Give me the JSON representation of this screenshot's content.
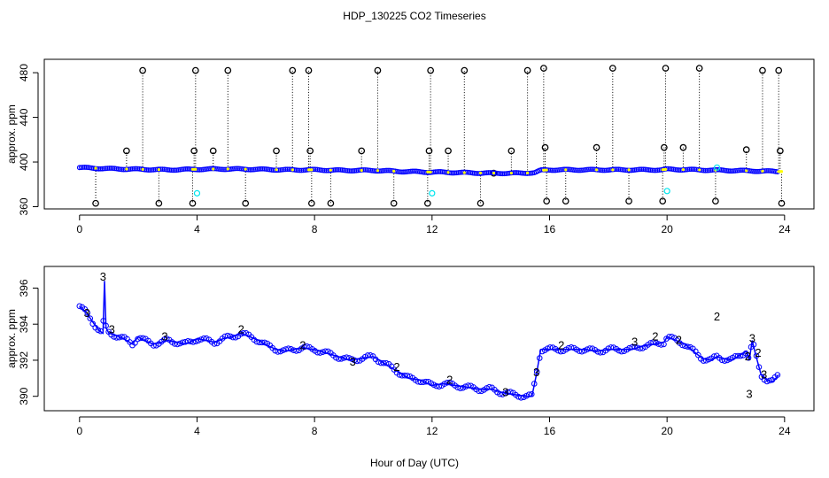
{
  "figure": {
    "title": "HDP_130225  CO2 Timeseries",
    "xlabel": "Hour of Day (UTC)"
  },
  "chart_data": [
    {
      "type": "scatter",
      "ylabel": "approx. ppm",
      "xlim": [
        -1.2,
        25.0
      ],
      "ylim": [
        358,
        492
      ],
      "xticks": [
        0,
        4,
        8,
        12,
        16,
        20,
        24
      ],
      "yticks": [
        360,
        400,
        440,
        480
      ],
      "colors": {
        "main": "#0000ff",
        "dropline": "#000000",
        "circle": "#000000",
        "cyan": "#00e5ee",
        "yellow": "#ffff00"
      },
      "baseline": [
        [
          0,
          395
        ],
        [
          0.5,
          394.5
        ],
        [
          1,
          394
        ],
        [
          2,
          393.5
        ],
        [
          3,
          393
        ],
        [
          4,
          393.5
        ],
        [
          5,
          393.8
        ],
        [
          6,
          393.5
        ],
        [
          7,
          393
        ],
        [
          8,
          393
        ],
        [
          9,
          392.5
        ],
        [
          10,
          392.5
        ],
        [
          11,
          391.5
        ],
        [
          12,
          391
        ],
        [
          13,
          390.5
        ],
        [
          14,
          390
        ],
        [
          15,
          390
        ],
        [
          15.5,
          390.5
        ],
        [
          15.7,
          392.5
        ],
        [
          16,
          393
        ],
        [
          17,
          393
        ],
        [
          18,
          393
        ],
        [
          19,
          393
        ],
        [
          19.8,
          393
        ],
        [
          20,
          393.5
        ],
        [
          21,
          393
        ],
        [
          22,
          392.5
        ],
        [
          23,
          392
        ],
        [
          23.8,
          391.5
        ]
      ],
      "spikes": [
        {
          "x": 0.55,
          "y": 363
        },
        {
          "x": 1.6,
          "y": 410
        },
        {
          "x": 2.15,
          "y": 482
        },
        {
          "x": 2.7,
          "y": 363
        },
        {
          "x": 3.85,
          "y": 363
        },
        {
          "x": 3.9,
          "y": 410
        },
        {
          "x": 3.95,
          "y": 482
        },
        {
          "x": 4.55,
          "y": 410
        },
        {
          "x": 5.05,
          "y": 482
        },
        {
          "x": 5.65,
          "y": 363
        },
        {
          "x": 6.7,
          "y": 410
        },
        {
          "x": 7.25,
          "y": 482
        },
        {
          "x": 7.8,
          "y": 482
        },
        {
          "x": 7.85,
          "y": 410
        },
        {
          "x": 7.9,
          "y": 363
        },
        {
          "x": 8.55,
          "y": 363
        },
        {
          "x": 9.6,
          "y": 410
        },
        {
          "x": 10.15,
          "y": 482
        },
        {
          "x": 10.7,
          "y": 363
        },
        {
          "x": 11.85,
          "y": 363
        },
        {
          "x": 11.9,
          "y": 410
        },
        {
          "x": 11.95,
          "y": 482
        },
        {
          "x": 12.55,
          "y": 410
        },
        {
          "x": 13.1,
          "y": 482
        },
        {
          "x": 13.65,
          "y": 363
        },
        {
          "x": 14.1,
          "y": 390
        },
        {
          "x": 14.7,
          "y": 410
        },
        {
          "x": 15.25,
          "y": 482
        },
        {
          "x": 15.8,
          "y": 484
        },
        {
          "x": 15.85,
          "y": 413
        },
        {
          "x": 15.9,
          "y": 365
        },
        {
          "x": 16.55,
          "y": 365
        },
        {
          "x": 17.6,
          "y": 413
        },
        {
          "x": 18.15,
          "y": 484
        },
        {
          "x": 18.7,
          "y": 365
        },
        {
          "x": 19.85,
          "y": 365
        },
        {
          "x": 19.9,
          "y": 413
        },
        {
          "x": 19.95,
          "y": 484
        },
        {
          "x": 20.55,
          "y": 413
        },
        {
          "x": 21.1,
          "y": 484
        },
        {
          "x": 21.65,
          "y": 365
        },
        {
          "x": 22.7,
          "y": 411
        },
        {
          "x": 23.25,
          "y": 482
        },
        {
          "x": 23.8,
          "y": 482
        },
        {
          "x": 23.85,
          "y": 410
        },
        {
          "x": 23.9,
          "y": 363
        }
      ],
      "cyan_points": [
        [
          4.0,
          372
        ],
        [
          12.0,
          372
        ],
        [
          20.0,
          374
        ],
        [
          21.7,
          395
        ]
      ]
    },
    {
      "type": "line",
      "ylabel": "approx. ppm",
      "xlim": [
        -1.2,
        25.0
      ],
      "ylim": [
        389.2,
        397.2
      ],
      "xticks": [
        0,
        4,
        8,
        12,
        16,
        20,
        24
      ],
      "yticks": [
        390,
        392,
        394,
        396
      ],
      "colors": {
        "main": "#0000ff",
        "circle": "#0000ff",
        "two": "#00cc00",
        "three": "#0000ff"
      },
      "series": [
        {
          "x": [
            0,
            0.25,
            0.5,
            0.7,
            0.8,
            0.85,
            0.9,
            1.0,
            1.2,
            1.5,
            1.8,
            2.0,
            2.2,
            2.5,
            2.8,
            3.0,
            3.3,
            3.6,
            3.9,
            4.0,
            4.3,
            4.6,
            4.9,
            5.2,
            5.5,
            5.8,
            6.1,
            6.4,
            6.7,
            7.0,
            7.3,
            7.6,
            7.9,
            8.0,
            8.4,
            8.8,
            9.2,
            9.6,
            10.0,
            10.4,
            10.8,
            11.2,
            11.6,
            12.0,
            12.4,
            12.8,
            13.2,
            13.6,
            14.0,
            14.4,
            14.8,
            15.2,
            15.4,
            15.55,
            15.7,
            16.0,
            16.4,
            16.8,
            17.2,
            17.6,
            18.0,
            18.4,
            18.8,
            19.2,
            19.6,
            19.9,
            20.0,
            20.3,
            20.6,
            20.9,
            21.2,
            21.5,
            21.7,
            21.9,
            22.2,
            22.5,
            22.7,
            22.8,
            22.9,
            23.0,
            23.2,
            23.4,
            23.6,
            23.8
          ],
          "y": [
            395,
            394.6,
            394,
            393.6,
            393.5,
            396.4,
            393.8,
            393.5,
            393.4,
            393.2,
            392.9,
            393.3,
            393.1,
            392.9,
            393.0,
            393.1,
            393.0,
            392.9,
            393.1,
            393.2,
            393.1,
            393.0,
            393.2,
            393.3,
            393.5,
            393.3,
            393.1,
            392.8,
            392.6,
            392.5,
            392.6,
            392.7,
            392.6,
            392.6,
            392.4,
            392.2,
            392.0,
            392.1,
            392.2,
            391.8,
            391.4,
            391.0,
            390.9,
            390.6,
            390.7,
            390.6,
            390.5,
            390.4,
            390.4,
            390.2,
            390.1,
            390.0,
            390.0,
            391.2,
            392.6,
            392.6,
            392.6,
            392.6,
            392.6,
            392.5,
            392.6,
            392.6,
            392.6,
            392.8,
            392.9,
            393.0,
            393.3,
            393.1,
            392.9,
            392.5,
            392.1,
            392.0,
            392.2,
            392.1,
            392.0,
            392.3,
            392.5,
            392.0,
            393.1,
            392.4,
            391.2,
            390.9,
            390.8,
            391.2
          ]
        }
      ]
    }
  ]
}
